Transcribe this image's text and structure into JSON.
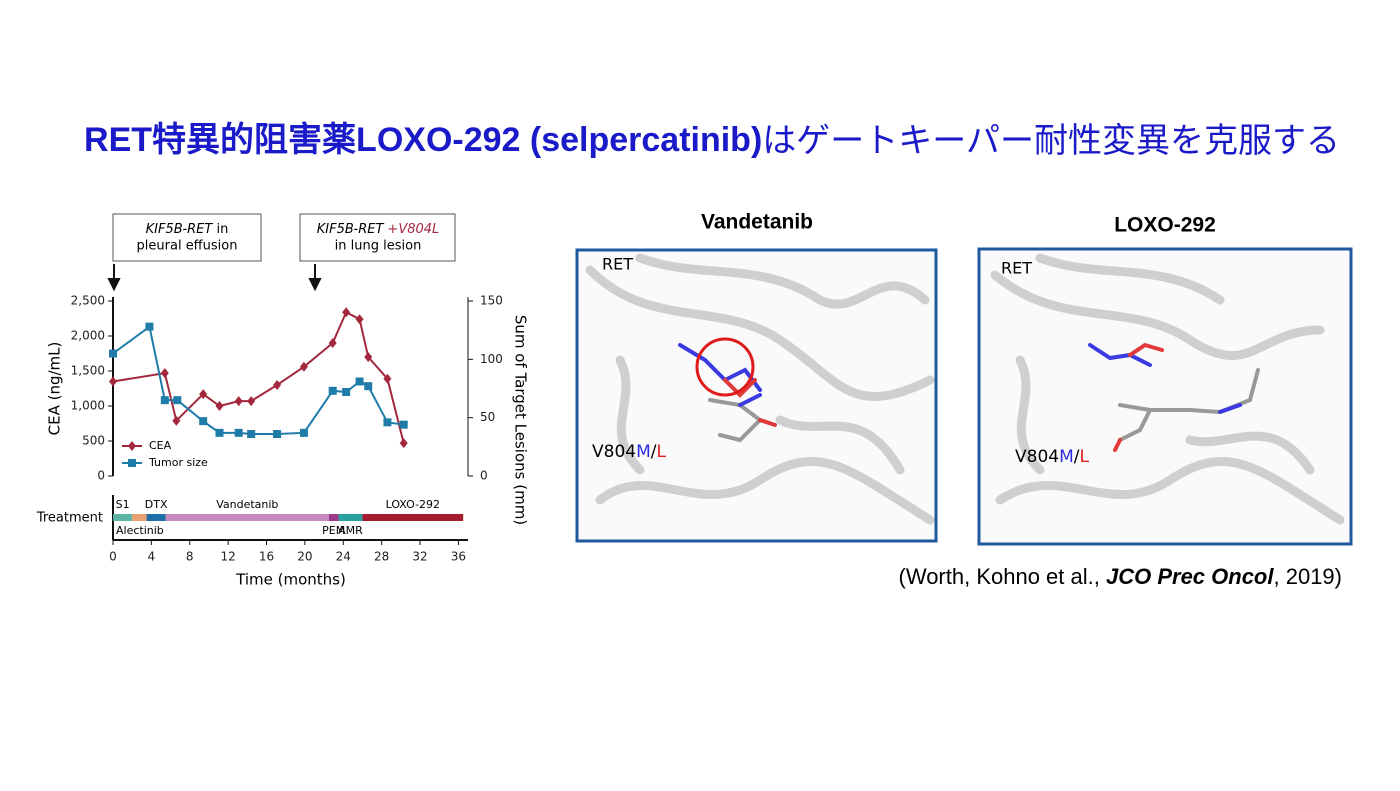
{
  "title": {
    "bold": "RET特異的阻害薬LOXO-292 (selpercatinib)",
    "rest": "はゲートキーパー耐性変異を克服する"
  },
  "chart_data": {
    "type": "line",
    "annotations": [
      {
        "gene": "KIF5B-RET",
        "suffix": " in",
        "line2": "pleural effusion"
      },
      {
        "gene": "KIF5B-RET",
        "mutation": "+V804L",
        "line2": "in lung lesion"
      }
    ],
    "xlabel": "Time (months)",
    "ylabel": "CEA (ng/mL)",
    "y2label": "Sum of Target Lesions (mm)",
    "xlim": [
      0,
      37
    ],
    "xticks": [
      0,
      4,
      8,
      12,
      16,
      20,
      24,
      28,
      32,
      36
    ],
    "ylim": [
      0,
      2500
    ],
    "yticks": [
      0,
      500,
      {
        "value": 1000,
        "label": "1,000"
      },
      {
        "value": 1500,
        "label": "1,500"
      },
      {
        "value": 2000,
        "label": "2,000"
      },
      {
        "value": 2500,
        "label": "2,500"
      }
    ],
    "y2lim": [
      0,
      150
    ],
    "y2ticks": [
      0,
      50,
      100,
      150
    ],
    "series": [
      {
        "name": "CEA",
        "color": "#a3283d",
        "marker": "diamond",
        "x": [
          0,
          5.4,
          6.6,
          9.4,
          11.1,
          13.1,
          14.4,
          17.1,
          19.9,
          22.9,
          24.3,
          25.7,
          26.6,
          28.6,
          30.3
        ],
        "values": [
          1350,
          1470,
          790,
          1170,
          1000,
          1070,
          1070,
          1300,
          1560,
          1900,
          2340,
          2240,
          1700,
          1390,
          470
        ]
      },
      {
        "name": "Tumor size",
        "color": "#1f7ca8",
        "marker": "square",
        "axis": "y2",
        "x": [
          0,
          3.8,
          5.4,
          6.7,
          9.4,
          11.1,
          13.1,
          14.4,
          17.1,
          19.9,
          22.9,
          24.3,
          25.7,
          26.6,
          28.6,
          30.3
        ],
        "values": [
          105,
          128,
          65,
          65,
          47,
          37,
          37,
          36,
          36,
          37,
          73,
          72,
          81,
          77,
          46,
          44
        ]
      }
    ],
    "treatment_label": "Treatment",
    "treatments": [
      {
        "label": "S1",
        "start": 0,
        "end": 2,
        "color": "#5cb5a4",
        "side": "above"
      },
      {
        "label": "Alectinib",
        "start": 2,
        "end": 3.5,
        "color": "#e8a070",
        "side": "below"
      },
      {
        "label": "DTX",
        "start": 3.5,
        "end": 5.5,
        "color": "#1f6fa8",
        "side": "above"
      },
      {
        "label": "Vandetanib",
        "start": 5.5,
        "end": 22.5,
        "color": "#c888c0",
        "side": "above"
      },
      {
        "label": "PEM",
        "start": 22.5,
        "end": 23.5,
        "color": "#9b3a8a",
        "side": "below"
      },
      {
        "label": "AMR",
        "start": 23.5,
        "end": 26,
        "color": "#2aa0a0",
        "side": "below"
      },
      {
        "label": "LOXO-292",
        "start": 26,
        "end": 36.5,
        "color": "#a51c30",
        "side": "above"
      }
    ]
  },
  "structures": [
    {
      "title": "Vandetanib",
      "chain": "RET",
      "residue": "V804",
      "mut1": "M",
      "sep": "/",
      "mut2": "L"
    },
    {
      "title": "LOXO-292",
      "chain": "RET",
      "residue": "V804",
      "mut1": "M",
      "sep": "/",
      "mut2": "L"
    }
  ],
  "citation": {
    "pre": "(Worth, Kohno et al., ",
    "journal": "JCO Prec Oncol",
    "post": ", 2019)"
  }
}
